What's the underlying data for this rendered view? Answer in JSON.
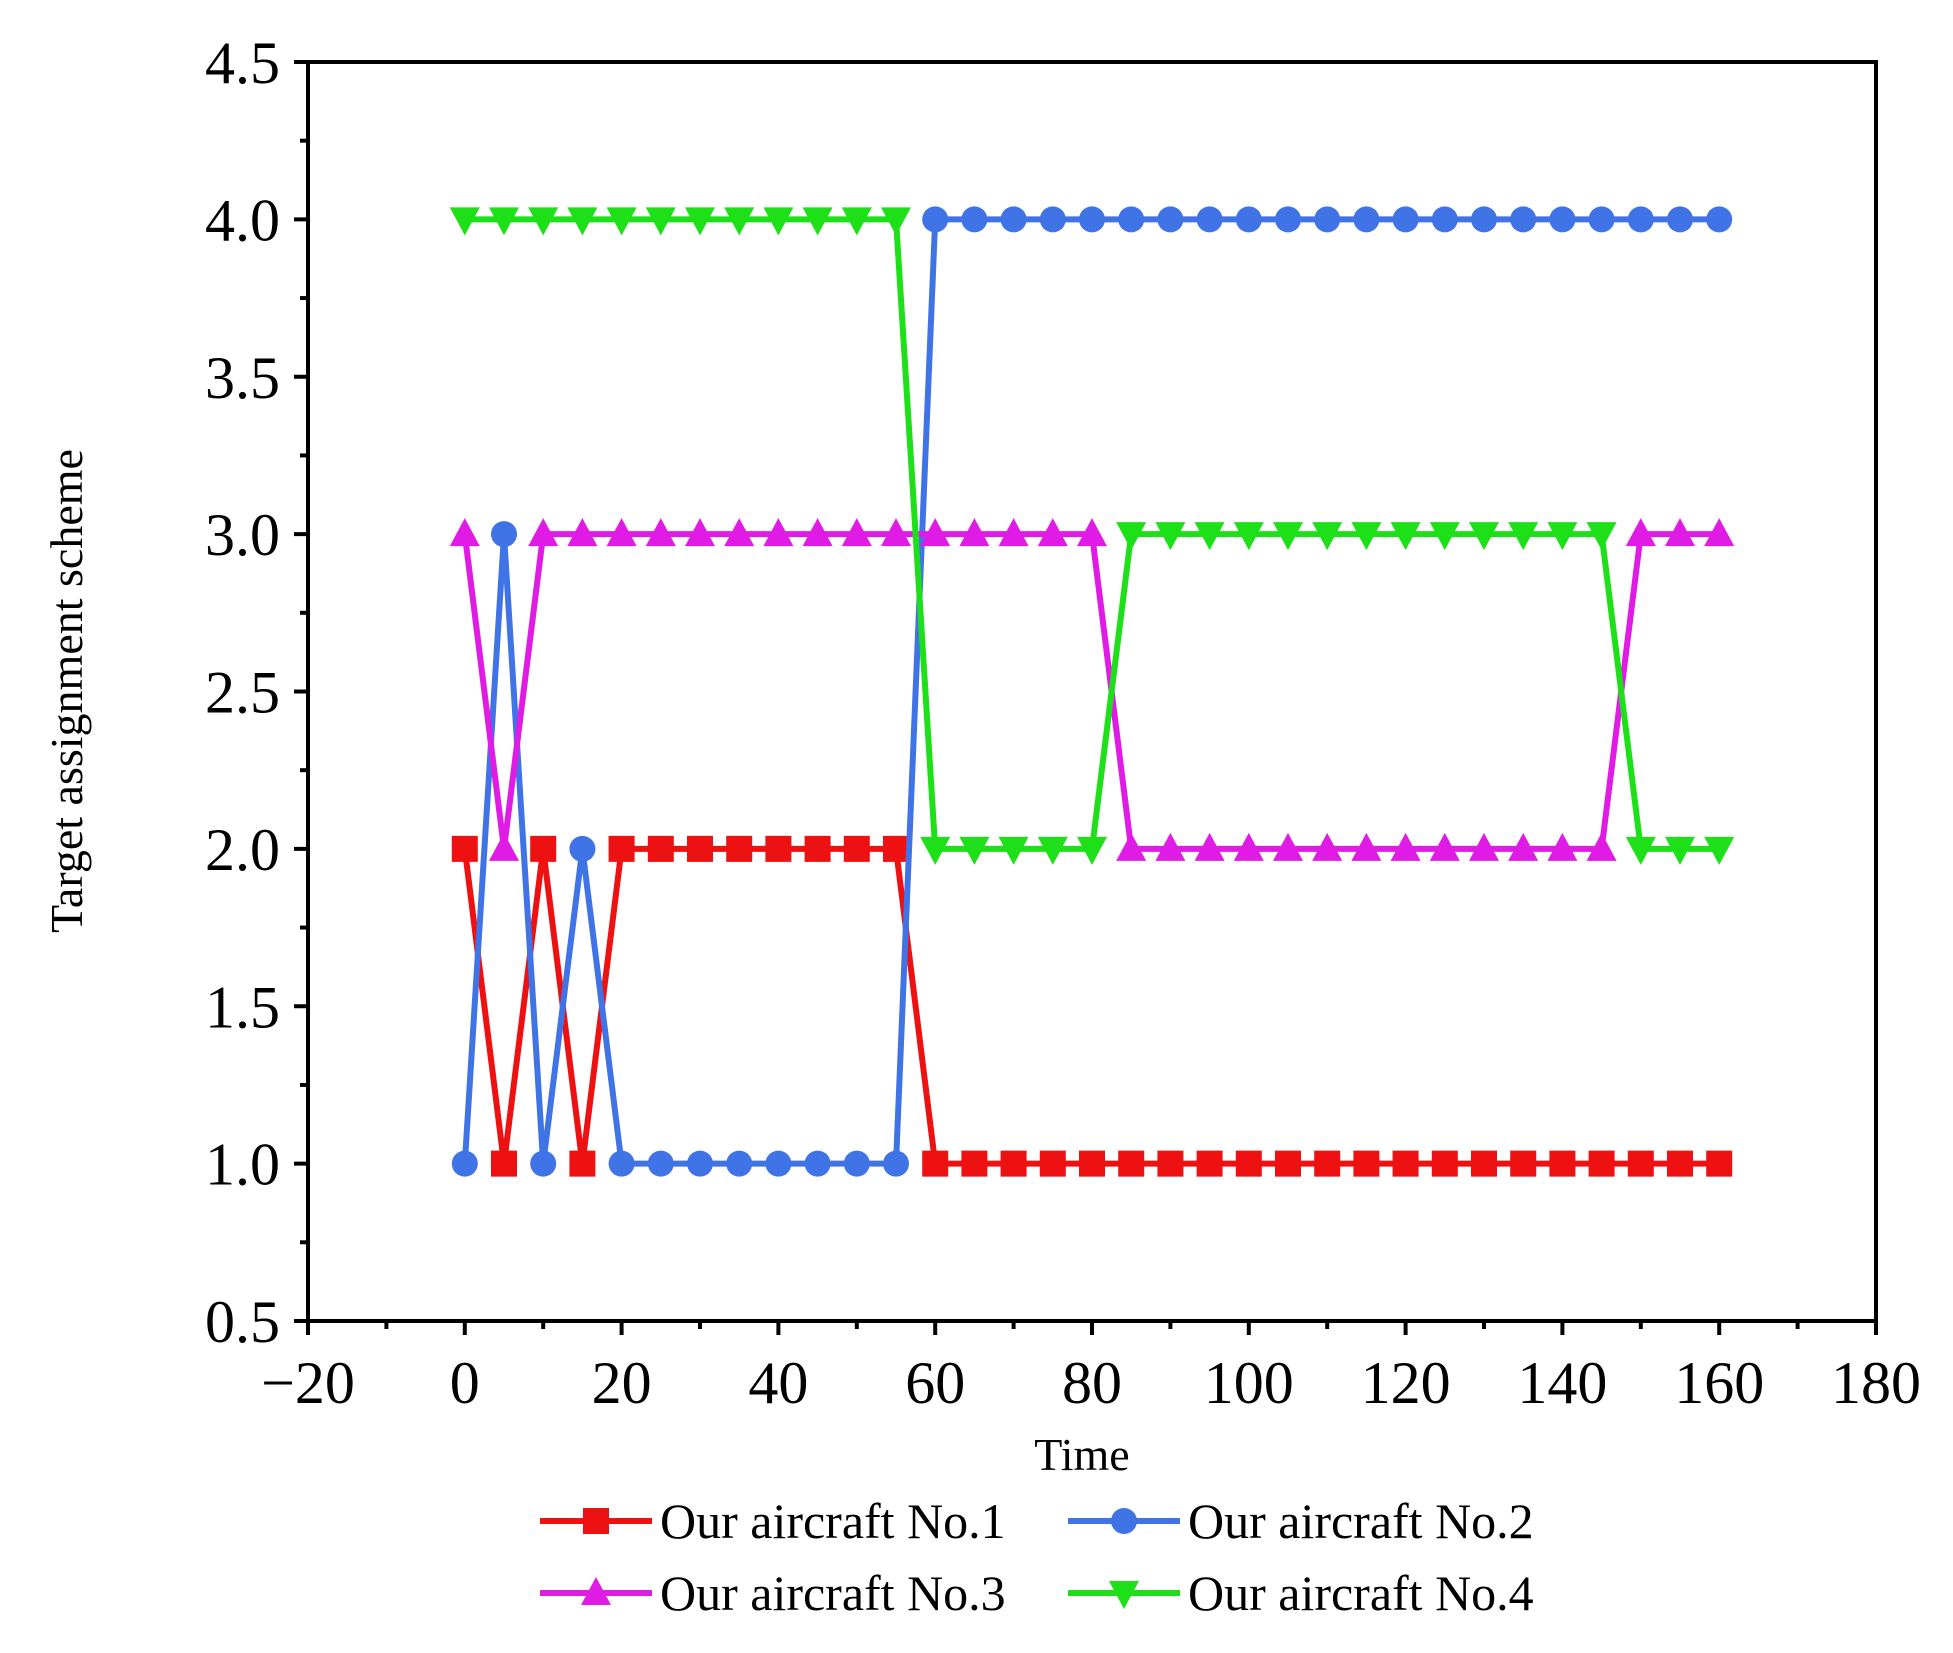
{
  "chart_data": {
    "type": "line",
    "title": "",
    "xlabel": "Time",
    "ylabel": "Target assignment scheme",
    "xlim": [
      -20,
      180
    ],
    "ylim": [
      0.5,
      4.5
    ],
    "x_ticks": [
      -20,
      0,
      20,
      40,
      60,
      80,
      100,
      120,
      140,
      160,
      180
    ],
    "x_tick_labels": [
      "−20",
      "0",
      "20",
      "40",
      "60",
      "80",
      "100",
      "120",
      "140",
      "160",
      "180"
    ],
    "y_ticks": [
      0.5,
      1.0,
      1.5,
      2.0,
      2.5,
      3.0,
      3.5,
      4.0,
      4.5
    ],
    "y_tick_labels": [
      "0.5",
      "1.0",
      "1.5",
      "2.0",
      "2.5",
      "3.0",
      "3.5",
      "4.0",
      "4.5"
    ],
    "grid": false,
    "legend_position": "bottom",
    "x": [
      0,
      5,
      10,
      15,
      20,
      25,
      30,
      35,
      40,
      45,
      50,
      55,
      60,
      65,
      70,
      75,
      80,
      85,
      90,
      95,
      100,
      105,
      110,
      115,
      120,
      125,
      130,
      135,
      140,
      145,
      150,
      155,
      160
    ],
    "series": [
      {
        "name": "Our aircraft No.1",
        "color": "#ee1111",
        "marker": "square",
        "values": [
          2,
          1,
          2,
          1,
          2,
          2,
          2,
          2,
          2,
          2,
          2,
          2,
          1,
          1,
          1,
          1,
          1,
          1,
          1,
          1,
          1,
          1,
          1,
          1,
          1,
          1,
          1,
          1,
          1,
          1,
          1,
          1,
          1
        ]
      },
      {
        "name": "Our aircraft No.2",
        "color": "#3f73e6",
        "marker": "circle",
        "values": [
          1,
          3,
          1,
          2,
          1,
          1,
          1,
          1,
          1,
          1,
          1,
          1,
          4,
          4,
          4,
          4,
          4,
          4,
          4,
          4,
          4,
          4,
          4,
          4,
          4,
          4,
          4,
          4,
          4,
          4,
          4,
          4,
          4
        ]
      },
      {
        "name": "Our aircraft No.3",
        "color": "#e11be6",
        "marker": "triangle-up",
        "values": [
          3,
          2,
          3,
          3,
          3,
          3,
          3,
          3,
          3,
          3,
          3,
          3,
          3,
          3,
          3,
          3,
          3,
          2,
          2,
          2,
          2,
          2,
          2,
          2,
          2,
          2,
          2,
          2,
          2,
          2,
          3,
          3,
          3
        ]
      },
      {
        "name": "Our aircraft No.4",
        "color": "#1de019",
        "marker": "triangle-down",
        "values": [
          4,
          4,
          4,
          4,
          4,
          4,
          4,
          4,
          4,
          4,
          4,
          4,
          2,
          2,
          2,
          2,
          2,
          3,
          3,
          3,
          3,
          3,
          3,
          3,
          3,
          3,
          3,
          3,
          3,
          3,
          2,
          2,
          2
        ]
      }
    ]
  }
}
